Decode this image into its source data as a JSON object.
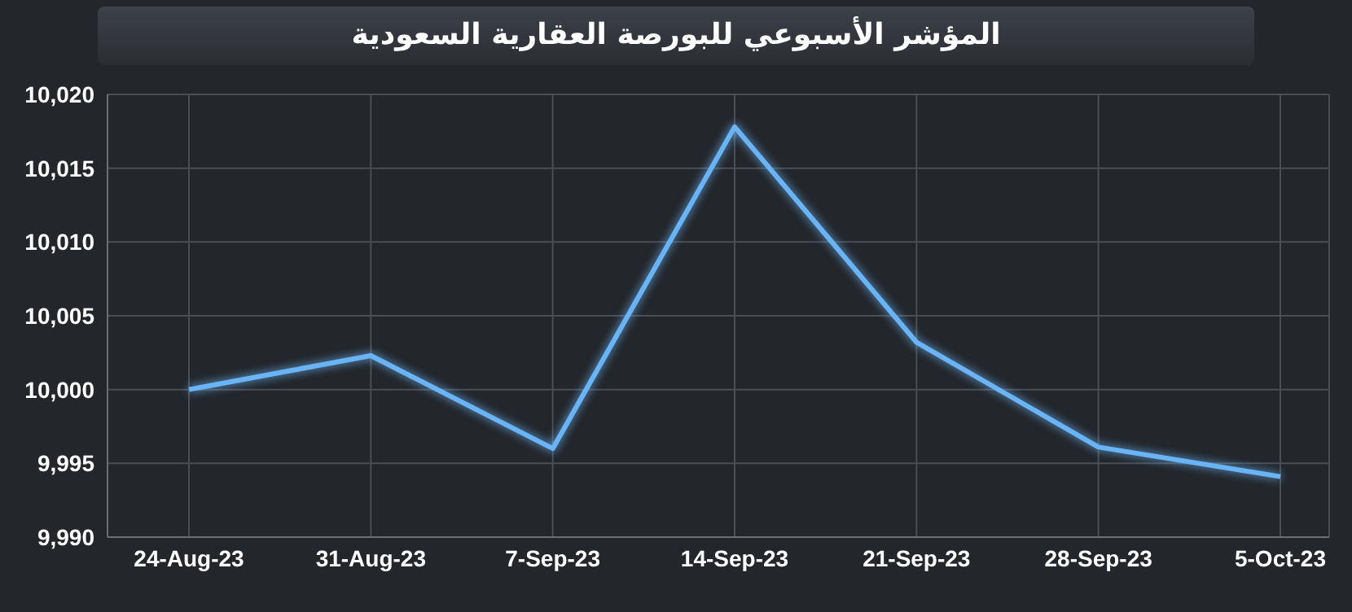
{
  "chart_data": {
    "type": "line",
    "title": "المؤشر الأسبوعي للبورصة العقارية السعودية",
    "categories": [
      "24-Aug-23",
      "31-Aug-23",
      "7-Sep-23",
      "14-Sep-23",
      "21-Sep-23",
      "28-Sep-23",
      "5-Oct-23"
    ],
    "series": [
      {
        "color": "#6ab4f5",
        "values": [
          10000.0,
          10002.3,
          9996.0,
          10017.8,
          10003.2,
          9996.1,
          9994.1
        ]
      }
    ],
    "ylim": [
      9990,
      10020
    ],
    "yticks": [
      {
        "value": 9990,
        "label": "9,990"
      },
      {
        "value": 9995,
        "label": "9,995"
      },
      {
        "value": 10000,
        "label": "10,000"
      },
      {
        "value": 10005,
        "label": "10,005"
      },
      {
        "value": 10010,
        "label": "10,010"
      },
      {
        "value": 10015,
        "label": "10,015"
      },
      {
        "value": 10020,
        "label": "10,020"
      }
    ],
    "grid": true,
    "marker": "none",
    "line_style": "solid"
  }
}
